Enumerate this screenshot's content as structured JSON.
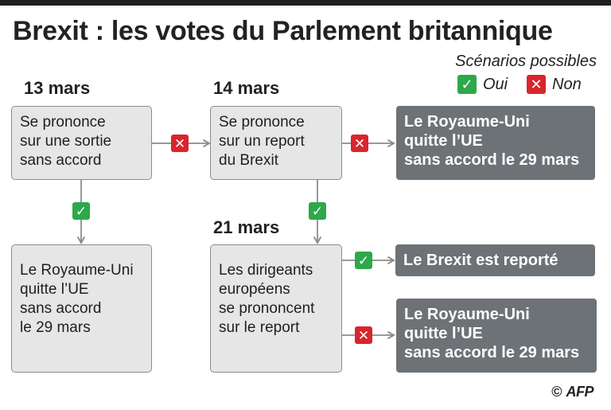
{
  "title": "Brexit : les votes du Parlement britannique",
  "legend": {
    "title": "Scénarios possibles",
    "yes_label": "Oui",
    "no_label": "Non"
  },
  "dates": {
    "d1": "13 mars",
    "d2": "14 mars",
    "d3": "21 mars"
  },
  "boxes": {
    "b1": [
      "Se prononce",
      "sur une sortie",
      "sans accord"
    ],
    "b2": [
      "Se prononce",
      "sur un report",
      "du Brexit"
    ],
    "b3": [
      "Le Royaume-Uni",
      "quitte l’UE",
      "sans accord",
      "le 29 mars"
    ],
    "b4": [
      "Les dirigeants",
      "européens",
      "se prononcent",
      "sur le report"
    ]
  },
  "results": {
    "r1": [
      "Le Royaume-Uni",
      "quitte l’UE",
      "sans accord le 29 mars"
    ],
    "r2": [
      "Le Brexit est reporté"
    ],
    "r3": [
      "Le Royaume-Uni",
      "quitte l’UE",
      "sans accord le 29 mars"
    ]
  },
  "colors": {
    "yes": "#2ea84a",
    "no": "#d9252d",
    "box": "#e6e6e6",
    "result": "#6d7276",
    "arrow": "#8c8c8c"
  },
  "credit": {
    "copyright": "©",
    "agency": "AFP"
  }
}
